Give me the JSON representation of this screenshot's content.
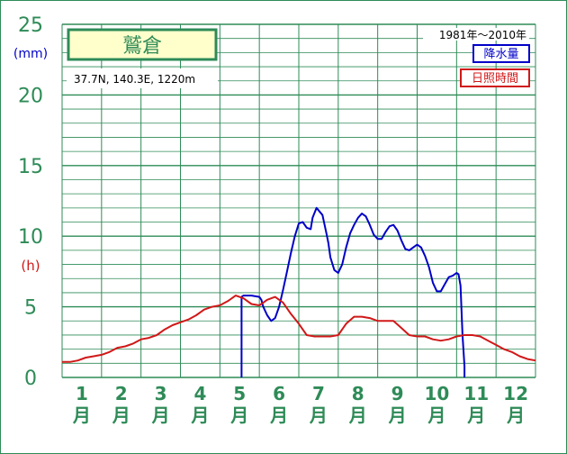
{
  "chart_data": {
    "type": "line",
    "title": "鷲倉",
    "subtitle": "37.7N,  140.3E,  1220m",
    "period": "1981年〜2010年",
    "unit_precip": "(mm)",
    "unit_sun": "(h)",
    "y_ticks": [
      "0",
      "5",
      "10",
      "15",
      "20",
      "25"
    ],
    "ylim": [
      0,
      25
    ],
    "xlim": [
      0,
      12
    ],
    "x_ticks_num": [
      "1",
      "2",
      "3",
      "4",
      "5",
      "6",
      "7",
      "8",
      "9",
      "10",
      "11",
      "12"
    ],
    "x_ticks_unit": "月",
    "grid": true,
    "legend_placement": "top-right",
    "series": [
      {
        "name": "降水量",
        "color": "#0000c8",
        "x": [
          4.55,
          4.55,
          4.6,
          4.7,
          4.8,
          5.0,
          5.05,
          5.1,
          5.2,
          5.3,
          5.4,
          5.5,
          5.6,
          5.7,
          5.8,
          5.9,
          6.0,
          6.1,
          6.2,
          6.3,
          6.35,
          6.45,
          6.6,
          6.7,
          6.75,
          6.8,
          6.9,
          7.0,
          7.1,
          7.2,
          7.3,
          7.4,
          7.5,
          7.6,
          7.7,
          7.8,
          7.9,
          8.0,
          8.1,
          8.2,
          8.3,
          8.4,
          8.5,
          8.6,
          8.7,
          8.8,
          8.9,
          9.0,
          9.1,
          9.2,
          9.3,
          9.4,
          9.5,
          9.6,
          9.7,
          9.8,
          9.9,
          10.0,
          10.05,
          10.1,
          10.15,
          10.2,
          10.2
        ],
        "values": [
          0,
          5.7,
          5.8,
          5.8,
          5.8,
          5.7,
          5.5,
          5.0,
          4.4,
          4.0,
          4.2,
          5.0,
          6.2,
          7.5,
          8.8,
          10.0,
          10.9,
          11.0,
          10.6,
          10.5,
          11.3,
          12.0,
          11.5,
          10.2,
          9.5,
          8.5,
          7.6,
          7.4,
          8.0,
          9.2,
          10.2,
          10.8,
          11.3,
          11.6,
          11.4,
          10.8,
          10.1,
          9.8,
          9.8,
          10.3,
          10.7,
          10.8,
          10.4,
          9.7,
          9.1,
          9.0,
          9.2,
          9.4,
          9.2,
          8.6,
          7.8,
          6.7,
          6.1,
          6.1,
          6.6,
          7.1,
          7.2,
          7.4,
          7.3,
          6.5,
          3.0,
          0.8,
          0
        ]
      },
      {
        "name": "日照時間",
        "color": "#d01818",
        "x": [
          0,
          0.2,
          0.4,
          0.6,
          0.8,
          1.0,
          1.2,
          1.4,
          1.6,
          1.8,
          2.0,
          2.2,
          2.4,
          2.6,
          2.8,
          3.0,
          3.2,
          3.4,
          3.6,
          3.8,
          4.0,
          4.2,
          4.4,
          4.6,
          4.8,
          5.0,
          5.2,
          5.4,
          5.6,
          5.8,
          6.0,
          6.2,
          6.4,
          6.6,
          6.8,
          7.0,
          7.2,
          7.4,
          7.6,
          7.8,
          8.0,
          8.2,
          8.4,
          8.6,
          8.8,
          9.0,
          9.2,
          9.4,
          9.6,
          9.8,
          10.0,
          10.2,
          10.4,
          10.6,
          10.8,
          11.0,
          11.2,
          11.4,
          11.6,
          11.8,
          12.0
        ],
        "values": [
          1.1,
          1.1,
          1.2,
          1.4,
          1.5,
          1.6,
          1.8,
          2.1,
          2.2,
          2.4,
          2.7,
          2.8,
          3.0,
          3.4,
          3.7,
          3.9,
          4.1,
          4.4,
          4.8,
          5.0,
          5.1,
          5.4,
          5.8,
          5.6,
          5.2,
          5.1,
          5.5,
          5.7,
          5.3,
          4.5,
          3.8,
          3.0,
          2.9,
          2.9,
          2.9,
          3.0,
          3.8,
          4.3,
          4.3,
          4.2,
          4.0,
          4.0,
          4.0,
          3.5,
          3.0,
          2.9,
          2.9,
          2.7,
          2.6,
          2.7,
          2.9,
          3.0,
          3.0,
          2.9,
          2.6,
          2.3,
          2.0,
          1.8,
          1.5,
          1.3,
          1.2
        ]
      }
    ]
  }
}
